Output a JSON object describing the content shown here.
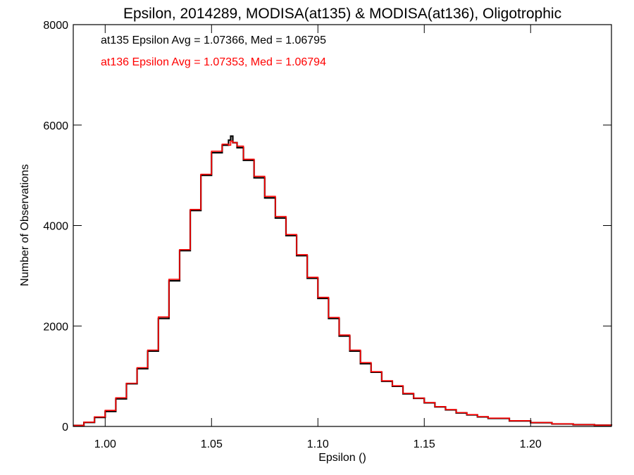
{
  "chart_data": {
    "type": "line",
    "title": "Epsilon, 2014289, MODISA(at135) & MODISA(at136), Oligotrophic",
    "xlabel": "Epsilon ()",
    "ylabel": "Number of Observations",
    "xlim": [
      0.985,
      1.238
    ],
    "ylim": [
      0,
      8000
    ],
    "x_ticks": [
      1.0,
      1.05,
      1.1,
      1.15,
      1.2
    ],
    "x_tick_labels": [
      "1.00",
      "1.05",
      "1.10",
      "1.15",
      "1.20"
    ],
    "y_ticks": [
      0,
      2000,
      4000,
      6000,
      8000
    ],
    "y_tick_labels": [
      "0",
      "2000",
      "4000",
      "6000",
      "8000"
    ],
    "grid": false,
    "annotations": [
      {
        "text": "at135 Epsilon Avg = 1.07366, Med = 1.06795",
        "color": "#000000"
      },
      {
        "text": "at136 Epsilon Avg = 1.07353, Med = 1.06794",
        "color": "#ff0000"
      }
    ],
    "series": [
      {
        "color": "#000000",
        "step": true,
        "x": [
          0.985,
          0.99,
          0.995,
          1.0,
          1.005,
          1.01,
          1.015,
          1.02,
          1.025,
          1.03,
          1.035,
          1.04,
          1.045,
          1.05,
          1.055,
          1.058,
          1.059,
          1.06,
          1.062,
          1.065,
          1.07,
          1.075,
          1.08,
          1.085,
          1.09,
          1.095,
          1.1,
          1.105,
          1.11,
          1.115,
          1.12,
          1.125,
          1.13,
          1.135,
          1.14,
          1.145,
          1.15,
          1.155,
          1.16,
          1.165,
          1.17,
          1.175,
          1.18,
          1.19,
          1.2,
          1.21,
          1.22,
          1.23,
          1.238
        ],
        "y": [
          20,
          80,
          180,
          300,
          550,
          850,
          1150,
          1500,
          2150,
          2900,
          3500,
          4300,
          5000,
          5450,
          5600,
          5700,
          5780,
          5650,
          5550,
          5300,
          4950,
          4550,
          4150,
          3800,
          3400,
          2950,
          2550,
          2150,
          1800,
          1500,
          1250,
          1080,
          900,
          800,
          650,
          560,
          470,
          390,
          330,
          270,
          230,
          190,
          160,
          110,
          75,
          50,
          35,
          25,
          20
        ]
      },
      {
        "color": "#ff0000",
        "step": true,
        "x": [
          0.985,
          0.99,
          0.995,
          1.0,
          1.005,
          1.01,
          1.015,
          1.02,
          1.025,
          1.03,
          1.035,
          1.04,
          1.045,
          1.05,
          1.055,
          1.058,
          1.059,
          1.06,
          1.062,
          1.065,
          1.07,
          1.075,
          1.08,
          1.085,
          1.09,
          1.095,
          1.1,
          1.105,
          1.11,
          1.115,
          1.12,
          1.125,
          1.13,
          1.135,
          1.14,
          1.145,
          1.15,
          1.155,
          1.16,
          1.165,
          1.17,
          1.175,
          1.18,
          1.19,
          1.2,
          1.21,
          1.22,
          1.23,
          1.238
        ],
        "y": [
          20,
          85,
          190,
          320,
          570,
          860,
          1170,
          1520,
          2180,
          2930,
          3520,
          4320,
          5020,
          5480,
          5620,
          5600,
          5680,
          5650,
          5580,
          5320,
          4980,
          4580,
          4180,
          3820,
          3420,
          2970,
          2570,
          2170,
          1820,
          1520,
          1270,
          1090,
          910,
          810,
          660,
          565,
          475,
          395,
          335,
          275,
          235,
          195,
          165,
          115,
          78,
          52,
          36,
          26,
          20
        ]
      }
    ]
  }
}
